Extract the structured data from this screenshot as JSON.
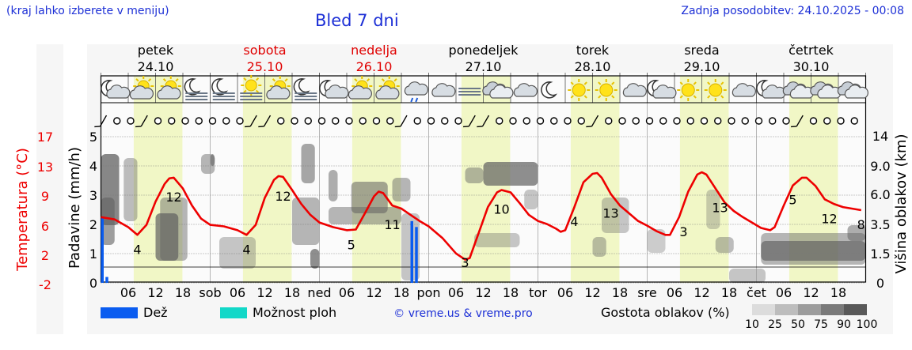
{
  "header": {
    "hint": "(kraj lahko izberete v meniju)",
    "title": "Bled 7 dni",
    "updated": "Zadnja posodobitev: 24.10.2025 - 00:08"
  },
  "days": [
    {
      "name": "petek",
      "date": "24.10",
      "color": "#000000",
      "weekend": false
    },
    {
      "name": "sobota",
      "date": "25.10",
      "color": "#e00000",
      "weekend": true
    },
    {
      "name": "nedelja",
      "date": "26.10",
      "color": "#e00000",
      "weekend": true
    },
    {
      "name": "ponedeljek",
      "date": "27.10",
      "color": "#000000",
      "weekend": false
    },
    {
      "name": "torek",
      "date": "28.10",
      "color": "#000000",
      "weekend": false
    },
    {
      "name": "sreda",
      "date": "29.10",
      "color": "#000000",
      "weekend": false
    },
    {
      "name": "četrtek",
      "date": "30.10",
      "color": "#000000",
      "weekend": false
    }
  ],
  "icons": [
    [
      "moon-cloud-icon",
      "sun-cloud-icon",
      "sun-cloud-icon",
      "moon-fog-icon"
    ],
    [
      "moon-fog-icon",
      "sun-fog-icon",
      "sun-cloud-icon",
      "moon-fog-icon"
    ],
    [
      "moon-cloud-icon",
      "sun-cloud-icon",
      "sun-cloud-icon",
      "rain-icon"
    ],
    [
      "cloud-icon",
      "fog-icon",
      "overcast-icon",
      "cloud-icon"
    ],
    [
      "moon-icon",
      "sun-icon",
      "sun-icon",
      "cloud-icon"
    ],
    [
      "moon-cloud-icon",
      "sun-icon",
      "sun-icon",
      "cloud-icon"
    ],
    [
      "moon-cloud-icon",
      "overcast-icon",
      "overcast-icon",
      "overcast-icon"
    ]
  ],
  "colors": {
    "temperature": "#ee0000",
    "rain": "#0a5cf0",
    "showers": "#12d8c8",
    "daylight": "#f1f7c6",
    "link": "#1c2fd6"
  },
  "chart_data": {
    "type": "line",
    "time_axis": {
      "start": "24.10.2025 00:00",
      "step_hours": 1,
      "labels": [
        "06",
        "12",
        "18",
        "sob",
        "06",
        "12",
        "18",
        "ned",
        "06",
        "12",
        "18",
        "pon",
        "06",
        "12",
        "18",
        "tor",
        "06",
        "12",
        "18",
        "sre",
        "06",
        "12",
        "18",
        "čet",
        "06",
        "12",
        "18"
      ]
    },
    "left_axes": {
      "temperature_label": "Temperatura (°C)",
      "temperature_ticks": [
        "17",
        "13",
        "9",
        "6",
        "2",
        "-2"
      ],
      "precip_label": "Padavine (mm/h)",
      "precip_ticks": [
        "0",
        "1",
        "2",
        "3",
        "4",
        "5"
      ],
      "precip_range": [
        0,
        5
      ],
      "temperature_range": [
        -2,
        17
      ]
    },
    "right_axis": {
      "label": "Višina oblakov (km)",
      "ticks": [
        "0",
        "1.5",
        "3.5",
        "6.0",
        "9.0",
        "14"
      ]
    },
    "temperature": [
      [
        0,
        6.5
      ],
      [
        3,
        6.2
      ],
      [
        6,
        5.2
      ],
      [
        8,
        4.2
      ],
      [
        10,
        5.5
      ],
      [
        12,
        8.5
      ],
      [
        14,
        10.8
      ],
      [
        15,
        11.5
      ],
      [
        16,
        11.6
      ],
      [
        18,
        10.2
      ],
      [
        20,
        8.0
      ],
      [
        22,
        6.3
      ],
      [
        24,
        5.5
      ],
      [
        27,
        5.3
      ],
      [
        30,
        4.8
      ],
      [
        32,
        4.2
      ],
      [
        34,
        5.5
      ],
      [
        36,
        9.0
      ],
      [
        38,
        11.3
      ],
      [
        39,
        11.8
      ],
      [
        40,
        11.7
      ],
      [
        42,
        10.0
      ],
      [
        44,
        8.2
      ],
      [
        46,
        6.8
      ],
      [
        48,
        5.8
      ],
      [
        51,
        5.2
      ],
      [
        54,
        4.8
      ],
      [
        56,
        4.9
      ],
      [
        58,
        7.0
      ],
      [
        60,
        9.2
      ],
      [
        61,
        9.8
      ],
      [
        62,
        9.6
      ],
      [
        64,
        8.0
      ],
      [
        66,
        7.6
      ],
      [
        68,
        6.8
      ],
      [
        70,
        6.0
      ],
      [
        72,
        5.3
      ],
      [
        75,
        3.8
      ],
      [
        78,
        1.8
      ],
      [
        80,
        1.0
      ],
      [
        81,
        1.2
      ],
      [
        83,
        4.5
      ],
      [
        85,
        7.8
      ],
      [
        87,
        9.7
      ],
      [
        88,
        10.0
      ],
      [
        90,
        9.7
      ],
      [
        92,
        8.3
      ],
      [
        94,
        6.8
      ],
      [
        96,
        6.0
      ],
      [
        98,
        5.6
      ],
      [
        100,
        5.0
      ],
      [
        101,
        4.6
      ],
      [
        102,
        4.8
      ],
      [
        104,
        7.8
      ],
      [
        106,
        11.0
      ],
      [
        108,
        12.1
      ],
      [
        109,
        12.2
      ],
      [
        110,
        11.6
      ],
      [
        112,
        9.5
      ],
      [
        114,
        8.0
      ],
      [
        116,
        7.0
      ],
      [
        118,
        6.0
      ],
      [
        120,
        5.4
      ],
      [
        122,
        4.7
      ],
      [
        124,
        4.2
      ],
      [
        125,
        4.2
      ],
      [
        127,
        6.5
      ],
      [
        129,
        9.8
      ],
      [
        131,
        12.0
      ],
      [
        132,
        12.3
      ],
      [
        133,
        12.0
      ],
      [
        135,
        10.2
      ],
      [
        137,
        8.4
      ],
      [
        139,
        7.3
      ],
      [
        141,
        6.5
      ],
      [
        143,
        5.8
      ],
      [
        145,
        5.1
      ],
      [
        147,
        4.8
      ],
      [
        148,
        5.2
      ],
      [
        150,
        8.0
      ],
      [
        152,
        10.6
      ],
      [
        154,
        11.6
      ],
      [
        155,
        11.6
      ],
      [
        157,
        10.5
      ],
      [
        159,
        8.8
      ],
      [
        161,
        8.2
      ],
      [
        163,
        7.8
      ],
      [
        167,
        7.4
      ]
    ],
    "temperature_labels": [
      {
        "text": "4",
        "x": 8
      },
      {
        "text": "12",
        "x": 16
      },
      {
        "text": "4",
        "x": 32
      },
      {
        "text": "12",
        "x": 40
      },
      {
        "text": "5",
        "x": 55
      },
      {
        "text": "11",
        "x": 64
      },
      {
        "text": "3",
        "x": 80
      },
      {
        "text": "10",
        "x": 88
      },
      {
        "text": "4",
        "x": 104
      },
      {
        "text": "13",
        "x": 112
      },
      {
        "text": "3",
        "x": 128
      },
      {
        "text": "13",
        "x": 136
      },
      {
        "text": "5",
        "x": 152
      },
      {
        "text": "12",
        "x": 160
      },
      {
        "text": "8",
        "x": 168
      }
    ],
    "rain": [
      {
        "x": 0,
        "value": 2.2
      },
      {
        "x": 1,
        "value": 0.2
      },
      {
        "x": 68,
        "value": 2.1
      },
      {
        "x": 69,
        "value": 1.9
      }
    ],
    "cloud_density_ticks": [
      "10",
      "25",
      "50",
      "75",
      "90",
      "100"
    ],
    "legend": {
      "rain": "Dež",
      "showers": "Možnost ploh",
      "credit": "© vreme.us & vreme.pro",
      "cloud_density": "Gostota oblakov (%)"
    }
  }
}
